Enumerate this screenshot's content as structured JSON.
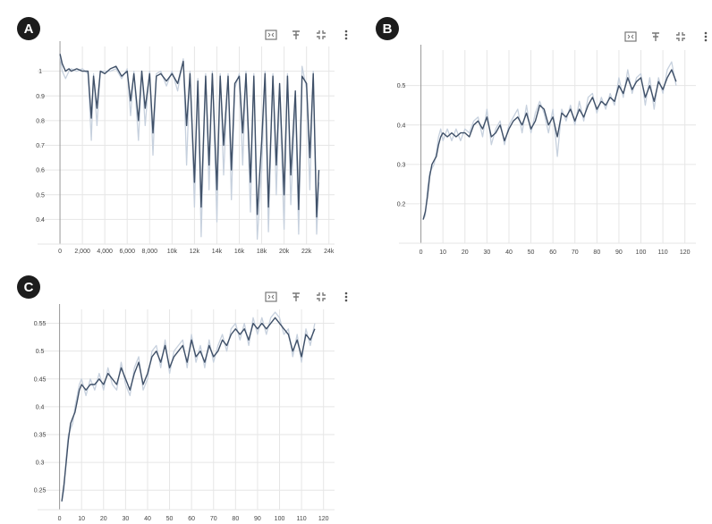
{
  "panels": {
    "A": {
      "label": "A"
    },
    "B": {
      "label": "B"
    },
    "C": {
      "label": "C"
    }
  },
  "toolbar_icons": [
    "expand-icon",
    "pin-icon",
    "fit-icon",
    "more-icon"
  ],
  "colors": {
    "line": "#3f5068",
    "raw": "#c7d1de",
    "grid": "#e6e6e6",
    "axis": "#9a9a9a",
    "tick": "#444444"
  },
  "chart_data": [
    {
      "id": "A",
      "type": "line",
      "xlim": [
        -2000,
        24500
      ],
      "ylim": [
        0.3,
        1.1
      ],
      "x_ticks": [
        0,
        2000,
        4000,
        6000,
        8000,
        10000,
        12000,
        14000,
        16000,
        18000,
        20000,
        22000,
        24000
      ],
      "x_tick_labels": [
        "0",
        "2,000",
        "4,000",
        "6,000",
        "8,000",
        "10k",
        "12k",
        "14k",
        "16k",
        "18k",
        "20k",
        "22k",
        "24k"
      ],
      "y_ticks": [
        0.4,
        0.5,
        0.6,
        0.7,
        0.8,
        0.9,
        1
      ],
      "y_tick_labels": [
        "0.4",
        "0.5",
        "0.6",
        "0.7",
        "0.8",
        "0.9",
        "1"
      ],
      "x": [
        0,
        200,
        500,
        800,
        1000,
        1500,
        2000,
        2500,
        2800,
        3000,
        3300,
        3600,
        4000,
        4500,
        5000,
        5500,
        6000,
        6300,
        6600,
        7000,
        7300,
        7600,
        8000,
        8300,
        8600,
        9000,
        9500,
        10000,
        10500,
        11000,
        11300,
        11600,
        12000,
        12300,
        12600,
        13000,
        13300,
        13600,
        14000,
        14300,
        14600,
        15000,
        15300,
        15600,
        16000,
        16300,
        16600,
        17000,
        17300,
        17600,
        18000,
        18300,
        18600,
        19000,
        19300,
        19600,
        20000,
        20300,
        20600,
        21000,
        21300,
        21600,
        22000,
        22300,
        22600,
        22900,
        23100
      ],
      "y": [
        1.07,
        1.03,
        1.0,
        1.01,
        1.0,
        1.01,
        1.0,
        1.0,
        0.81,
        0.98,
        0.85,
        1.0,
        0.99,
        1.01,
        1.02,
        0.98,
        1.0,
        0.88,
        0.99,
        0.8,
        1.0,
        0.85,
        0.99,
        0.75,
        0.98,
        0.99,
        0.96,
        0.99,
        0.95,
        1.04,
        0.78,
        0.99,
        0.55,
        0.96,
        0.45,
        0.98,
        0.62,
        0.99,
        0.52,
        0.98,
        0.7,
        0.98,
        0.6,
        0.95,
        0.98,
        0.75,
        0.99,
        0.55,
        0.98,
        0.42,
        0.72,
        0.99,
        0.45,
        0.98,
        0.62,
        0.95,
        0.5,
        0.98,
        0.58,
        0.92,
        0.44,
        0.98,
        0.95,
        0.65,
        0.99,
        0.41,
        0.6
      ],
      "raw_y": [
        1.06,
        1.0,
        0.97,
        1.0,
        1.01,
        1.0,
        1.01,
        0.99,
        0.72,
        0.99,
        0.78,
        1.0,
        1.0,
        1.0,
        1.01,
        0.97,
        1.01,
        0.82,
        1.0,
        0.72,
        1.0,
        0.78,
        1.0,
        0.66,
        0.99,
        1.0,
        0.94,
        1.0,
        0.92,
        1.05,
        0.62,
        1.0,
        0.45,
        0.97,
        0.33,
        0.99,
        0.52,
        1.0,
        0.39,
        0.99,
        0.58,
        0.99,
        0.48,
        0.93,
        0.99,
        0.62,
        1.0,
        0.43,
        0.99,
        0.32,
        0.6,
        1.0,
        0.35,
        0.99,
        0.5,
        0.92,
        0.36,
        0.99,
        0.46,
        0.88,
        0.34,
        1.02,
        0.93,
        0.52,
        1.0,
        0.34,
        0.55
      ]
    },
    {
      "id": "B",
      "type": "line",
      "xlim": [
        -10,
        125
      ],
      "ylim": [
        0.1,
        0.59
      ],
      "x_ticks": [
        0,
        10,
        20,
        30,
        40,
        50,
        60,
        70,
        80,
        90,
        100,
        110,
        120
      ],
      "x_tick_labels": [
        "0",
        "10",
        "20",
        "30",
        "40",
        "50",
        "60",
        "70",
        "80",
        "90",
        "100",
        "110",
        "120"
      ],
      "y_ticks": [
        0.2,
        0.3,
        0.4,
        0.5
      ],
      "y_tick_labels": [
        "0.2",
        "0.3",
        "0.4",
        "0.5"
      ],
      "x": [
        1,
        2,
        3,
        4,
        5,
        6,
        7,
        8,
        9,
        10,
        12,
        14,
        16,
        18,
        20,
        22,
        24,
        26,
        28,
        30,
        32,
        34,
        36,
        38,
        40,
        42,
        44,
        46,
        48,
        50,
        52,
        54,
        56,
        58,
        60,
        62,
        64,
        66,
        68,
        70,
        72,
        74,
        76,
        78,
        80,
        82,
        84,
        86,
        88,
        90,
        92,
        94,
        96,
        98,
        100,
        102,
        104,
        106,
        108,
        110,
        112,
        114,
        116
      ],
      "y": [
        0.16,
        0.18,
        0.22,
        0.27,
        0.3,
        0.31,
        0.32,
        0.35,
        0.37,
        0.38,
        0.37,
        0.38,
        0.37,
        0.38,
        0.38,
        0.37,
        0.4,
        0.41,
        0.39,
        0.42,
        0.37,
        0.38,
        0.4,
        0.36,
        0.39,
        0.41,
        0.42,
        0.4,
        0.43,
        0.39,
        0.41,
        0.45,
        0.44,
        0.4,
        0.42,
        0.37,
        0.43,
        0.42,
        0.44,
        0.41,
        0.44,
        0.42,
        0.45,
        0.47,
        0.44,
        0.46,
        0.45,
        0.47,
        0.46,
        0.5,
        0.48,
        0.52,
        0.49,
        0.51,
        0.52,
        0.47,
        0.5,
        0.46,
        0.51,
        0.49,
        0.52,
        0.54,
        0.51
      ],
      "raw_y": [
        0.16,
        0.17,
        0.24,
        0.28,
        0.29,
        0.3,
        0.33,
        0.37,
        0.39,
        0.36,
        0.39,
        0.36,
        0.39,
        0.36,
        0.39,
        0.38,
        0.41,
        0.42,
        0.37,
        0.44,
        0.35,
        0.39,
        0.41,
        0.35,
        0.4,
        0.42,
        0.44,
        0.38,
        0.45,
        0.38,
        0.43,
        0.46,
        0.43,
        0.38,
        0.44,
        0.32,
        0.44,
        0.41,
        0.45,
        0.4,
        0.46,
        0.41,
        0.47,
        0.48,
        0.43,
        0.47,
        0.44,
        0.48,
        0.45,
        0.52,
        0.47,
        0.54,
        0.48,
        0.52,
        0.53,
        0.45,
        0.52,
        0.44,
        0.52,
        0.48,
        0.54,
        0.56,
        0.5
      ]
    },
    {
      "id": "C",
      "type": "line",
      "xlim": [
        -10,
        125
      ],
      "ylim": [
        0.215,
        0.575
      ],
      "x_ticks": [
        0,
        10,
        20,
        30,
        40,
        50,
        60,
        70,
        80,
        90,
        100,
        110,
        120
      ],
      "x_tick_labels": [
        "0",
        "10",
        "20",
        "30",
        "40",
        "50",
        "60",
        "70",
        "80",
        "90",
        "100",
        "110",
        "120"
      ],
      "y_ticks": [
        0.25,
        0.3,
        0.35,
        0.4,
        0.45,
        0.5,
        0.55
      ],
      "y_tick_labels": [
        "0.25",
        "0.3",
        "0.35",
        "0.4",
        "0.45",
        "0.5",
        "0.55"
      ],
      "x": [
        1,
        2,
        3,
        4,
        5,
        6,
        7,
        8,
        9,
        10,
        12,
        14,
        16,
        18,
        20,
        22,
        24,
        26,
        28,
        30,
        32,
        34,
        36,
        38,
        40,
        42,
        44,
        46,
        48,
        50,
        52,
        54,
        56,
        58,
        60,
        62,
        64,
        66,
        68,
        70,
        72,
        74,
        76,
        78,
        80,
        82,
        84,
        86,
        88,
        90,
        92,
        94,
        96,
        98,
        100,
        102,
        104,
        106,
        108,
        110,
        112,
        114,
        116
      ],
      "y": [
        0.23,
        0.26,
        0.3,
        0.34,
        0.37,
        0.38,
        0.39,
        0.41,
        0.43,
        0.44,
        0.43,
        0.44,
        0.44,
        0.45,
        0.44,
        0.46,
        0.45,
        0.44,
        0.47,
        0.45,
        0.43,
        0.46,
        0.48,
        0.44,
        0.46,
        0.49,
        0.5,
        0.48,
        0.51,
        0.47,
        0.49,
        0.5,
        0.51,
        0.48,
        0.52,
        0.49,
        0.5,
        0.48,
        0.51,
        0.49,
        0.5,
        0.52,
        0.51,
        0.53,
        0.54,
        0.53,
        0.54,
        0.52,
        0.55,
        0.54,
        0.55,
        0.54,
        0.55,
        0.56,
        0.55,
        0.54,
        0.53,
        0.5,
        0.52,
        0.49,
        0.53,
        0.52,
        0.54
      ],
      "raw_y": [
        0.23,
        0.25,
        0.31,
        0.35,
        0.36,
        0.37,
        0.4,
        0.42,
        0.44,
        0.45,
        0.42,
        0.45,
        0.43,
        0.46,
        0.43,
        0.47,
        0.44,
        0.43,
        0.48,
        0.44,
        0.42,
        0.47,
        0.49,
        0.43,
        0.45,
        0.5,
        0.51,
        0.47,
        0.52,
        0.46,
        0.5,
        0.51,
        0.52,
        0.47,
        0.53,
        0.48,
        0.51,
        0.47,
        0.52,
        0.48,
        0.51,
        0.53,
        0.5,
        0.54,
        0.55,
        0.52,
        0.55,
        0.51,
        0.56,
        0.53,
        0.56,
        0.53,
        0.56,
        0.57,
        0.56,
        0.53,
        0.54,
        0.49,
        0.53,
        0.48,
        0.54,
        0.51,
        0.55
      ]
    }
  ]
}
